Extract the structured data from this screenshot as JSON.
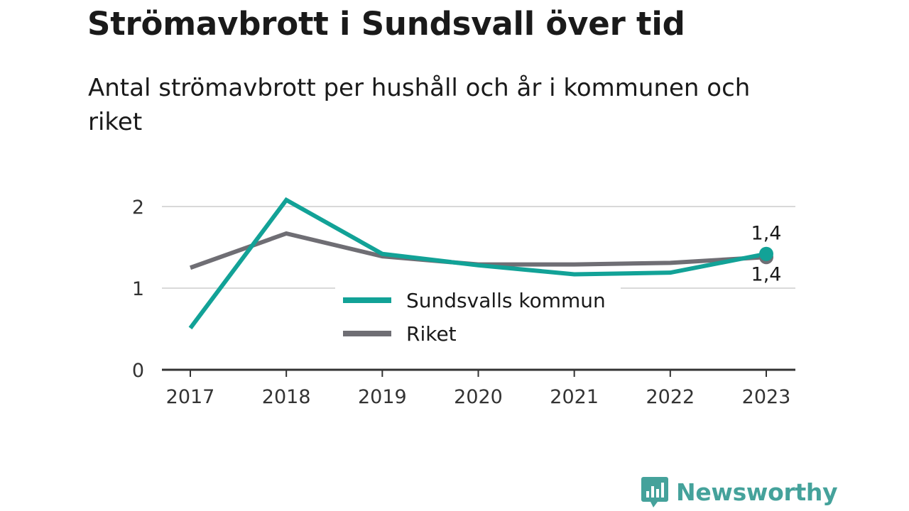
{
  "title": "Strömavbrott i Sundsvall över tid",
  "subtitle": "Antal strömavbrott per hushåll och år i kommunen och riket",
  "brand": {
    "name": "Newsworthy",
    "icon": "bar-chart-speech-bubble-icon",
    "color": "#45a29b"
  },
  "chart_data": {
    "type": "line",
    "x": [
      "2017",
      "2018",
      "2019",
      "2020",
      "2021",
      "2022",
      "2023"
    ],
    "yticks": [
      "0",
      "1",
      "2"
    ],
    "ylim": [
      0,
      2.25
    ],
    "grid": true,
    "legend_position": "center",
    "series": [
      {
        "name": "Sundsvalls kommun",
        "color": "#12a297",
        "values": [
          0.51,
          2.08,
          1.42,
          1.28,
          1.17,
          1.19,
          1.42
        ],
        "end_label": "1,4"
      },
      {
        "name": "Riket",
        "color": "#6f6e74",
        "values": [
          1.25,
          1.67,
          1.39,
          1.29,
          1.29,
          1.31,
          1.38
        ],
        "end_label": "1,4"
      }
    ]
  }
}
